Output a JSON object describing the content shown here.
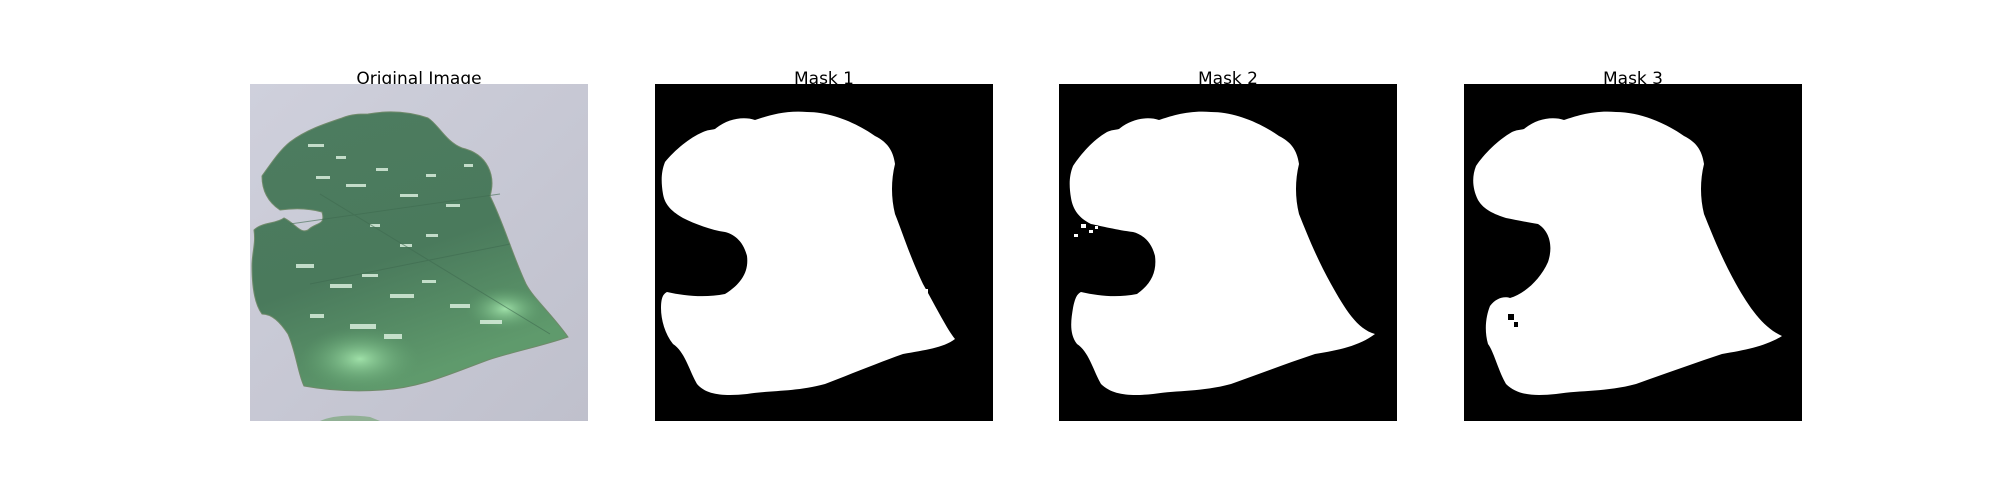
{
  "figure": {
    "panels": [
      {
        "title": "Original Image"
      },
      {
        "title": "Mask 1"
      },
      {
        "title": "Mask 2"
      },
      {
        "title": "Mask 3"
      }
    ]
  },
  "colors": {
    "background": "#ffffff",
    "mask_background": "#000000",
    "mask_foreground": "#ffffff",
    "photo_background": "#c9cad6",
    "leaf_dark": "#4c7a5e",
    "leaf_light": "#8fcf9a"
  }
}
